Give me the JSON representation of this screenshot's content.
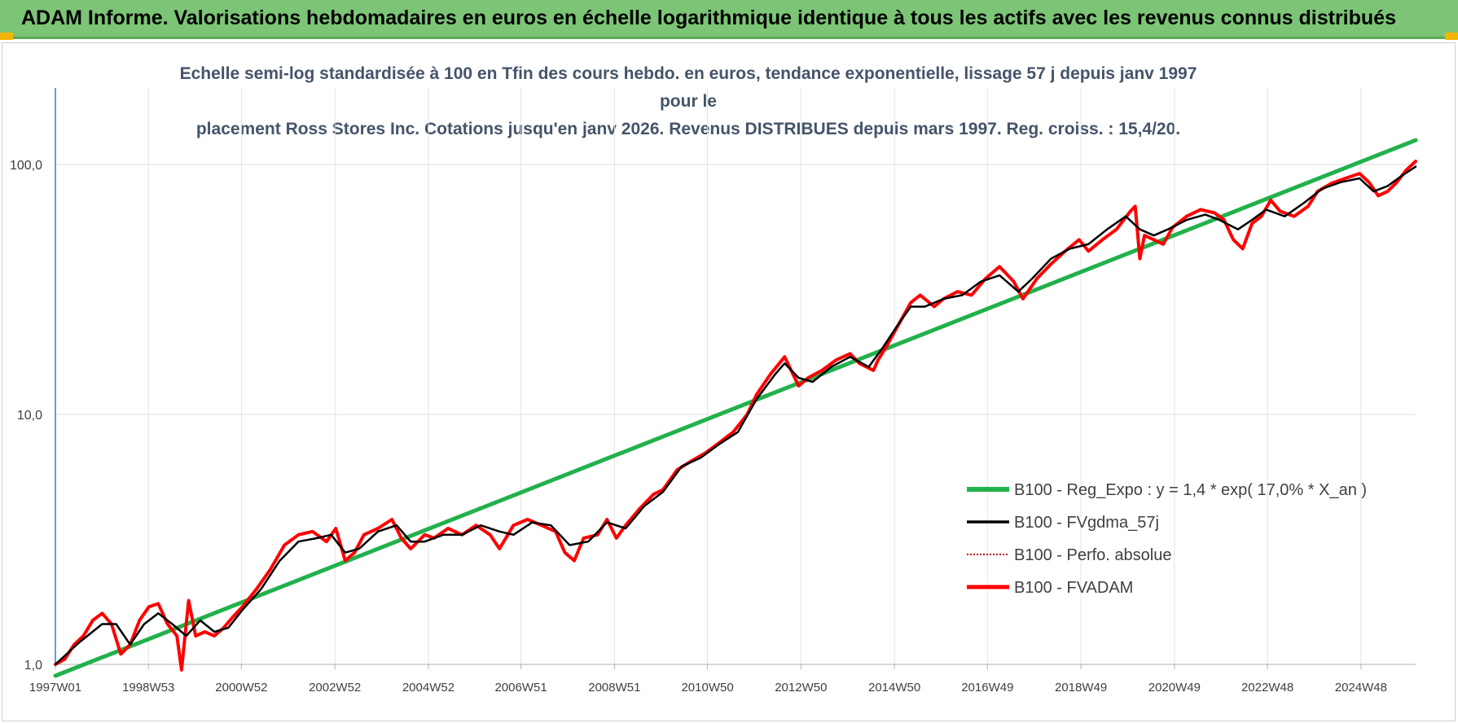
{
  "header": {
    "title": "ADAM Informe. Valorisations hebdomadaires en euros en échelle logarithmique identique à tous les actifs avec les revenus connus distribués",
    "background": "#7cc576",
    "corner_color": "#f2b705"
  },
  "chart_data": {
    "type": "line",
    "title_lines": [
      "Echelle semi-log standardisée à 100 en Tfin des cours hebdo. en euros, tendance exponentielle, lissage 57 j depuis janv 1997 pour le",
      "placement Ross Stores Inc. Cotations jusqu'en janv 2026.  Revenus DISTRIBUES depuis mars 1997. Reg. croiss. : 15,4/20."
    ],
    "y_scale": "log",
    "ylim": [
      1,
      180
    ],
    "y_ticks": [
      {
        "value": 1,
        "label": "1,0"
      },
      {
        "value": 10,
        "label": "10,0"
      },
      {
        "value": 100,
        "label": "100,0"
      }
    ],
    "xlim": [
      1997.0,
      2026.1
    ],
    "x_ticks": [
      {
        "x": 1997.0,
        "label": "1997W01"
      },
      {
        "x": 1998.99,
        "label": "1998W53"
      },
      {
        "x": 2000.98,
        "label": "2000W52"
      },
      {
        "x": 2002.98,
        "label": "2002W52"
      },
      {
        "x": 2004.98,
        "label": "2004W52"
      },
      {
        "x": 2006.96,
        "label": "2006W51"
      },
      {
        "x": 2008.96,
        "label": "2008W51"
      },
      {
        "x": 2010.95,
        "label": "2010W50"
      },
      {
        "x": 2012.95,
        "label": "2012W50"
      },
      {
        "x": 2014.95,
        "label": "2014W50"
      },
      {
        "x": 2016.94,
        "label": "2016W49"
      },
      {
        "x": 2018.94,
        "label": "2018W49"
      },
      {
        "x": 2020.94,
        "label": "2020W49"
      },
      {
        "x": 2022.93,
        "label": "2022W48"
      },
      {
        "x": 2024.93,
        "label": "2024W48"
      }
    ],
    "grid": true,
    "legend_position": "bottom-right",
    "series": [
      {
        "name": "B100 - Reg_Expo : y = 1,4 * exp( 17,0% *  X_an )",
        "color": "#22b14c",
        "style": "solid",
        "width": 5,
        "points": [
          [
            1997.0,
            0.9
          ],
          [
            2026.1,
            125
          ]
        ]
      },
      {
        "name": "B100 - FVgdma_57j",
        "color": "#000000",
        "style": "solid",
        "width": 2.5,
        "points": [
          [
            1997.0,
            1.0
          ],
          [
            1997.5,
            1.22
          ],
          [
            1998.0,
            1.45
          ],
          [
            1998.3,
            1.45
          ],
          [
            1998.6,
            1.2
          ],
          [
            1998.9,
            1.45
          ],
          [
            1999.2,
            1.6
          ],
          [
            1999.5,
            1.45
          ],
          [
            1999.8,
            1.3
          ],
          [
            2000.1,
            1.5
          ],
          [
            2000.4,
            1.35
          ],
          [
            2000.7,
            1.4
          ],
          [
            2001.0,
            1.65
          ],
          [
            2001.4,
            2.0
          ],
          [
            2001.8,
            2.6
          ],
          [
            2002.2,
            3.1
          ],
          [
            2002.6,
            3.2
          ],
          [
            2002.9,
            3.3
          ],
          [
            2003.2,
            2.8
          ],
          [
            2003.5,
            2.9
          ],
          [
            2003.9,
            3.4
          ],
          [
            2004.3,
            3.6
          ],
          [
            2004.6,
            3.1
          ],
          [
            2004.9,
            3.1
          ],
          [
            2005.3,
            3.3
          ],
          [
            2005.7,
            3.3
          ],
          [
            2006.1,
            3.6
          ],
          [
            2006.5,
            3.4
          ],
          [
            2006.8,
            3.3
          ],
          [
            2007.2,
            3.7
          ],
          [
            2007.6,
            3.6
          ],
          [
            2008.0,
            3.0
          ],
          [
            2008.4,
            3.1
          ],
          [
            2008.8,
            3.7
          ],
          [
            2009.2,
            3.5
          ],
          [
            2009.6,
            4.3
          ],
          [
            2010.0,
            4.9
          ],
          [
            2010.4,
            6.2
          ],
          [
            2010.8,
            6.7
          ],
          [
            2011.2,
            7.6
          ],
          [
            2011.6,
            8.5
          ],
          [
            2012.0,
            11.5
          ],
          [
            2012.4,
            14.5
          ],
          [
            2012.6,
            16.0
          ],
          [
            2012.9,
            14.0
          ],
          [
            2013.2,
            13.5
          ],
          [
            2013.6,
            15.5
          ],
          [
            2014.0,
            17.0
          ],
          [
            2014.4,
            15.5
          ],
          [
            2014.7,
            18.5
          ],
          [
            2015.0,
            22.5
          ],
          [
            2015.3,
            27.0
          ],
          [
            2015.6,
            27.0
          ],
          [
            2016.0,
            29.0
          ],
          [
            2016.4,
            30.0
          ],
          [
            2016.8,
            34.0
          ],
          [
            2017.2,
            36.0
          ],
          [
            2017.6,
            31.0
          ],
          [
            2017.9,
            35.0
          ],
          [
            2018.3,
            42.0
          ],
          [
            2018.7,
            46.0
          ],
          [
            2019.1,
            48.0
          ],
          [
            2019.5,
            55.0
          ],
          [
            2019.9,
            62.0
          ],
          [
            2020.2,
            55.0
          ],
          [
            2020.5,
            52.0
          ],
          [
            2020.8,
            55.0
          ],
          [
            2021.2,
            60.0
          ],
          [
            2021.6,
            63.0
          ],
          [
            2021.9,
            60.0
          ],
          [
            2022.3,
            55.0
          ],
          [
            2022.6,
            60.0
          ],
          [
            2022.9,
            66.0
          ],
          [
            2023.3,
            62.0
          ],
          [
            2023.7,
            70.0
          ],
          [
            2024.1,
            80.0
          ],
          [
            2024.5,
            85.0
          ],
          [
            2024.9,
            88.0
          ],
          [
            2025.2,
            78.0
          ],
          [
            2025.5,
            82.0
          ],
          [
            2025.8,
            90.0
          ],
          [
            2026.1,
            98.0
          ]
        ]
      },
      {
        "name": "B100 - Perfo. absolue",
        "color": "#c00000",
        "style": "dotted",
        "width": 1.5,
        "points": []
      },
      {
        "name": "B100 - FVADAM",
        "color": "#ff0000",
        "style": "solid",
        "width": 4,
        "points": [
          [
            1997.0,
            1.0
          ],
          [
            1997.2,
            1.05
          ],
          [
            1997.4,
            1.2
          ],
          [
            1997.6,
            1.3
          ],
          [
            1997.8,
            1.5
          ],
          [
            1998.0,
            1.6
          ],
          [
            1998.2,
            1.45
          ],
          [
            1998.4,
            1.1
          ],
          [
            1998.6,
            1.2
          ],
          [
            1998.8,
            1.5
          ],
          [
            1999.0,
            1.7
          ],
          [
            1999.2,
            1.75
          ],
          [
            1999.4,
            1.45
          ],
          [
            1999.6,
            1.3
          ],
          [
            1999.7,
            0.95
          ],
          [
            1999.85,
            1.8
          ],
          [
            2000.0,
            1.3
          ],
          [
            2000.2,
            1.35
          ],
          [
            2000.4,
            1.3
          ],
          [
            2000.6,
            1.4
          ],
          [
            2000.8,
            1.55
          ],
          [
            2001.0,
            1.7
          ],
          [
            2001.3,
            2.0
          ],
          [
            2001.6,
            2.4
          ],
          [
            2001.9,
            3.0
          ],
          [
            2002.2,
            3.3
          ],
          [
            2002.5,
            3.4
          ],
          [
            2002.8,
            3.1
          ],
          [
            2003.0,
            3.5
          ],
          [
            2003.2,
            2.6
          ],
          [
            2003.4,
            2.8
          ],
          [
            2003.6,
            3.3
          ],
          [
            2003.9,
            3.5
          ],
          [
            2004.2,
            3.8
          ],
          [
            2004.4,
            3.2
          ],
          [
            2004.6,
            2.9
          ],
          [
            2004.9,
            3.3
          ],
          [
            2005.1,
            3.2
          ],
          [
            2005.4,
            3.5
          ],
          [
            2005.7,
            3.3
          ],
          [
            2006.0,
            3.6
          ],
          [
            2006.3,
            3.3
          ],
          [
            2006.5,
            2.9
          ],
          [
            2006.8,
            3.6
          ],
          [
            2007.1,
            3.8
          ],
          [
            2007.4,
            3.6
          ],
          [
            2007.7,
            3.4
          ],
          [
            2007.9,
            2.8
          ],
          [
            2008.1,
            2.6
          ],
          [
            2008.3,
            3.2
          ],
          [
            2008.6,
            3.3
          ],
          [
            2008.8,
            3.8
          ],
          [
            2009.0,
            3.2
          ],
          [
            2009.2,
            3.6
          ],
          [
            2009.5,
            4.2
          ],
          [
            2009.8,
            4.8
          ],
          [
            2010.0,
            5.0
          ],
          [
            2010.3,
            6.0
          ],
          [
            2010.6,
            6.5
          ],
          [
            2010.9,
            7.0
          ],
          [
            2011.2,
            7.7
          ],
          [
            2011.5,
            8.5
          ],
          [
            2011.8,
            10.0
          ],
          [
            2012.0,
            12.0
          ],
          [
            2012.3,
            14.5
          ],
          [
            2012.6,
            17.0
          ],
          [
            2012.9,
            13.0
          ],
          [
            2013.1,
            14.0
          ],
          [
            2013.4,
            15.0
          ],
          [
            2013.7,
            16.5
          ],
          [
            2014.0,
            17.5
          ],
          [
            2014.2,
            16.0
          ],
          [
            2014.5,
            15.0
          ],
          [
            2014.6,
            16.5
          ],
          [
            2014.8,
            19.0
          ],
          [
            2015.1,
            24.0
          ],
          [
            2015.3,
            28.0
          ],
          [
            2015.5,
            30.0
          ],
          [
            2015.8,
            27.0
          ],
          [
            2016.0,
            29.0
          ],
          [
            2016.3,
            31.0
          ],
          [
            2016.6,
            30.0
          ],
          [
            2016.9,
            35.0
          ],
          [
            2017.2,
            39.0
          ],
          [
            2017.5,
            34.0
          ],
          [
            2017.7,
            29.0
          ],
          [
            2018.0,
            35.0
          ],
          [
            2018.3,
            40.0
          ],
          [
            2018.6,
            45.0
          ],
          [
            2018.9,
            50.0
          ],
          [
            2019.1,
            45.0
          ],
          [
            2019.4,
            50.0
          ],
          [
            2019.7,
            55.0
          ],
          [
            2020.0,
            65.0
          ],
          [
            2020.1,
            68.0
          ],
          [
            2020.2,
            42.0
          ],
          [
            2020.3,
            52.0
          ],
          [
            2020.5,
            50.0
          ],
          [
            2020.7,
            48.0
          ],
          [
            2020.9,
            56.0
          ],
          [
            2021.2,
            62.0
          ],
          [
            2021.5,
            66.0
          ],
          [
            2021.8,
            64.0
          ],
          [
            2022.0,
            60.0
          ],
          [
            2022.2,
            50.0
          ],
          [
            2022.4,
            46.0
          ],
          [
            2022.6,
            58.0
          ],
          [
            2022.8,
            62.0
          ],
          [
            2023.0,
            72.0
          ],
          [
            2023.2,
            65.0
          ],
          [
            2023.5,
            62.0
          ],
          [
            2023.8,
            68.0
          ],
          [
            2024.0,
            78.0
          ],
          [
            2024.3,
            84.0
          ],
          [
            2024.6,
            88.0
          ],
          [
            2024.9,
            92.0
          ],
          [
            2025.1,
            85.0
          ],
          [
            2025.3,
            75.0
          ],
          [
            2025.5,
            78.0
          ],
          [
            2025.7,
            85.0
          ],
          [
            2025.9,
            95.0
          ],
          [
            2026.1,
            103.0
          ]
        ]
      }
    ]
  }
}
